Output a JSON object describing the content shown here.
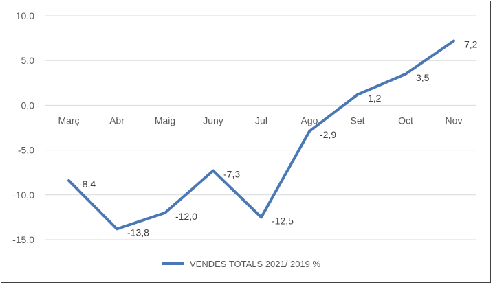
{
  "chart_data": {
    "type": "line",
    "categories": [
      "Març",
      "Abr",
      "Maig",
      "Juny",
      "Jul",
      "Ago",
      "Set",
      "Oct",
      "Nov"
    ],
    "series": [
      {
        "name": "VENDES TOTALS 2021/ 2019 %",
        "values": [
          -8.4,
          -13.8,
          -12.0,
          -7.3,
          -12.5,
          -2.9,
          1.2,
          3.5,
          7.2
        ],
        "labels": [
          "-8,4",
          "-13,8",
          "-12,0",
          "-7,3",
          "-12,5",
          "-2,9",
          "1,2",
          "3,5",
          "7,2"
        ],
        "color": "#4a78b4"
      }
    ],
    "y_ticks": [
      10,
      5,
      0,
      -5,
      -10,
      -15
    ],
    "y_tick_labels": [
      "10,0",
      "5,0",
      "0,0",
      "-5,0",
      "-10,0",
      "-15,0"
    ],
    "ylim": [
      -15,
      10
    ],
    "grid": true,
    "gridline_color": "#d9d9d9",
    "legend_position": "bottom"
  }
}
